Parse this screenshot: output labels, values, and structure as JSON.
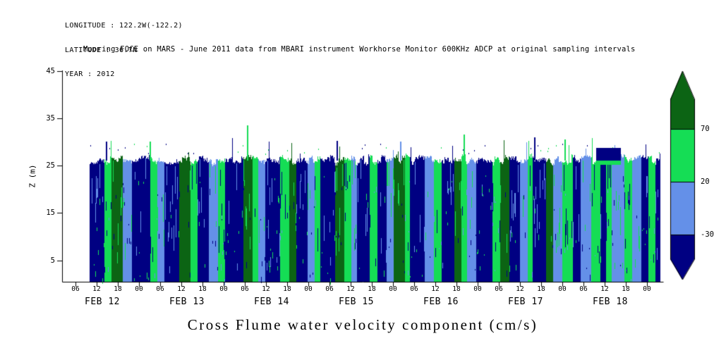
{
  "header": {
    "longitude": "LONGITUDE : 122.2W(-122.2)",
    "latitude": "LATITUDE : 36.7N",
    "year": "YEAR : 2012"
  },
  "title": "Mooring FOCE on MARS - June 2011 data from MBARI instrument Workhorse Monitor 600KHz ADCP at original sampling intervals",
  "footer_title": "Cross Flume water velocity component (cm/s)",
  "y_axis": {
    "label": "Z (m)",
    "ticks": [
      "45",
      "35",
      "25",
      "15",
      "5"
    ],
    "tick_values": [
      45,
      35,
      25,
      15,
      5
    ]
  },
  "x_axis": {
    "time_label_cycle": [
      "06",
      "12",
      "18",
      "00"
    ],
    "num_time_labels": 28,
    "hours_per_tick": 6,
    "date_labels": [
      "FEB 12",
      "FEB 13",
      "FEB 14",
      "FEB 15",
      "FEB 16",
      "FEB 17",
      "FEB 18"
    ]
  },
  "colorbar": {
    "labels": [
      "70",
      "20",
      "-30"
    ],
    "label_values": [
      70,
      20,
      -30
    ],
    "seg_colors": [
      "#0c6414",
      "#15dd55",
      "#6490e8",
      "#000082"
    ],
    "seg_meaning": [
      "above 70",
      "20 to 70",
      "-30 to 20",
      "below -30"
    ]
  },
  "chart_data": {
    "type": "heatmap",
    "title": "Cross Flume water velocity component (cm/s)",
    "subtitle": "Mooring FOCE on MARS - June 2011 data from MBARI instrument Workhorse Monitor 600KHz ADCP at original sampling intervals",
    "ylabel": "Z (m)",
    "ylim": [
      0,
      45
    ],
    "y_ticks": [
      5,
      15,
      25,
      35,
      45
    ],
    "x_days": [
      "FEB 12",
      "FEB 13",
      "FEB 14",
      "FEB 15",
      "FEB 16",
      "FEB 17",
      "FEB 18"
    ],
    "x_hours_per_tick": 6,
    "levels_cm_s": [
      -30,
      20,
      70
    ],
    "palette": [
      "#000082",
      "#6490e8",
      "#15dd55",
      "#0c6414"
    ],
    "palette_meaning": [
      "velocity < -30 cm/s",
      "-30 to 20 cm/s",
      "20 to 70 cm/s",
      "> 70 cm/s"
    ],
    "data_extent": {
      "t_start_hours": 10,
      "t_end_hours": 171.5,
      "z_bottom_m": 0.5,
      "z_top_mean_m": 26.3
    },
    "band_format": "[relative_width_hours, color_index] with color_index into palette",
    "bands": [
      [
        4,
        0
      ],
      [
        2,
        2
      ],
      [
        3,
        3
      ],
      [
        2.5,
        1
      ],
      [
        5,
        0
      ],
      [
        2,
        2
      ],
      [
        2,
        1
      ],
      [
        4,
        0
      ],
      [
        3,
        3
      ],
      [
        2,
        2
      ],
      [
        3,
        0
      ],
      [
        2.5,
        1
      ],
      [
        2,
        2
      ],
      [
        5,
        0
      ],
      [
        2.5,
        3
      ],
      [
        1.5,
        2
      ],
      [
        2,
        1
      ],
      [
        4,
        0
      ],
      [
        2.5,
        2
      ],
      [
        2,
        3
      ],
      [
        3,
        0
      ],
      [
        2,
        1
      ],
      [
        1.5,
        2
      ],
      [
        4,
        0
      ],
      [
        2.5,
        3
      ],
      [
        2,
        2
      ],
      [
        1.5,
        1
      ],
      [
        3.5,
        0
      ],
      [
        2,
        2
      ],
      [
        2.5,
        0
      ],
      [
        2,
        1
      ],
      [
        3,
        3
      ],
      [
        1.5,
        2
      ],
      [
        4,
        0
      ],
      [
        2.5,
        1
      ],
      [
        2,
        2
      ],
      [
        3.5,
        0
      ],
      [
        2,
        3
      ],
      [
        1.5,
        2
      ],
      [
        2.5,
        1
      ],
      [
        4.5,
        0
      ],
      [
        2,
        2
      ],
      [
        2.5,
        3
      ],
      [
        3,
        0
      ],
      [
        2,
        1
      ],
      [
        1.5,
        2
      ],
      [
        3.5,
        0
      ],
      [
        2,
        3
      ],
      [
        2.5,
        1
      ],
      [
        3,
        2
      ],
      [
        2,
        0
      ],
      [
        3,
        1
      ],
      [
        2.5,
        2
      ],
      [
        1.5,
        0
      ],
      [
        1.5,
        2
      ],
      [
        3.5,
        1
      ],
      [
        2,
        2
      ],
      [
        2.5,
        1
      ],
      [
        2,
        0
      ],
      [
        2,
        2
      ],
      [
        1,
        0
      ]
    ],
    "features": {
      "cap": {
        "t1": 153.5,
        "t2": 160.5,
        "z_bottom": 26.0,
        "z_top": 28.7,
        "color_index": 0,
        "underline": {
          "z_bottom": 25.2,
          "z_top": 26.0,
          "color_index": 2
        }
      },
      "spikes": [
        [
          14.5,
          30,
          0
        ],
        [
          27,
          30,
          2
        ],
        [
          54.6,
          33.5,
          2
        ],
        [
          80,
          30.2,
          0
        ],
        [
          98,
          30,
          1
        ],
        [
          116,
          31.5,
          2
        ],
        [
          136,
          31,
          0
        ],
        [
          144.6,
          30.5,
          2
        ]
      ]
    }
  }
}
